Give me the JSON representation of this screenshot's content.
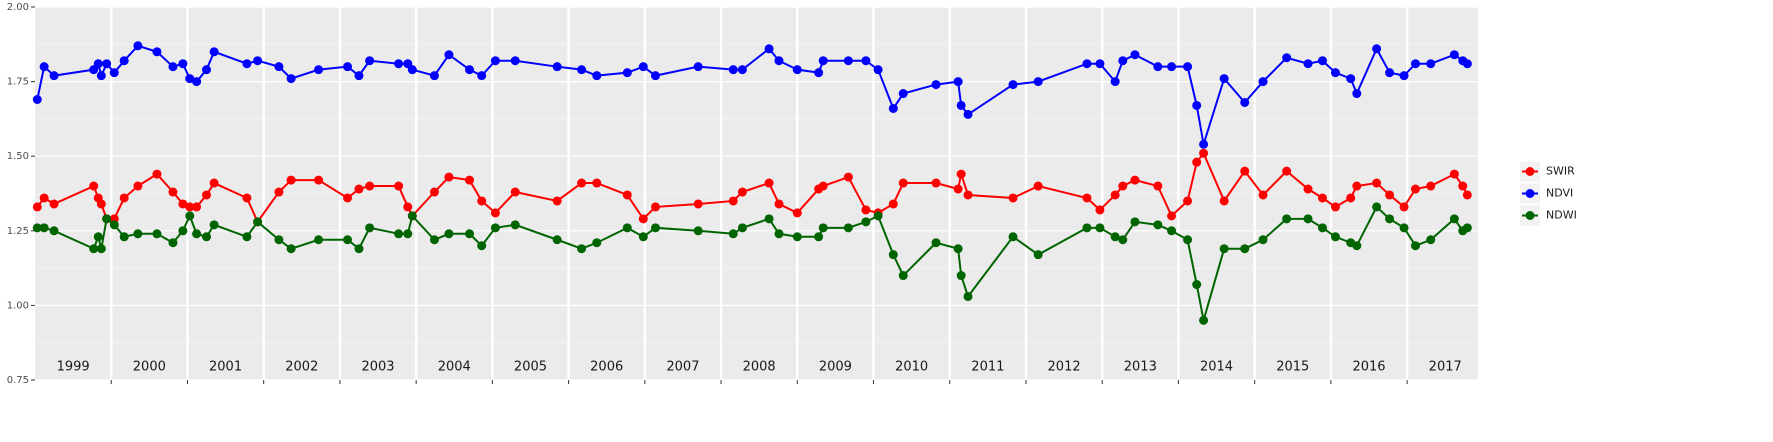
{
  "chart_data": {
    "type": "line",
    "x": [
      1999.03,
      1999.12,
      1999.25,
      1999.77,
      1999.83,
      1999.87,
      1999.94,
      2000.04,
      2000.17,
      2000.35,
      2000.6,
      2000.81,
      2000.94,
      2001.03,
      2001.12,
      2001.25,
      2001.35,
      2001.78,
      2001.92,
      2002.2,
      2002.36,
      2002.72,
      2003.1,
      2003.25,
      2003.39,
      2003.77,
      2003.89,
      2003.95,
      2004.24,
      2004.43,
      2004.7,
      2004.86,
      2005.04,
      2005.3,
      2005.85,
      2006.17,
      2006.37,
      2006.77,
      2006.98,
      2007.14,
      2007.7,
      2008.16,
      2008.28,
      2008.63,
      2008.76,
      2009.0,
      2009.28,
      2009.34,
      2009.67,
      2009.9,
      2010.06,
      2010.26,
      2010.39,
      2010.82,
      2011.11,
      2011.15,
      2011.24,
      2011.83,
      2012.16,
      2012.8,
      2012.97,
      2013.17,
      2013.27,
      2013.43,
      2013.73,
      2013.91,
      2014.12,
      2014.24,
      2014.33,
      2014.6,
      2014.87,
      2015.11,
      2015.42,
      2015.7,
      2015.89,
      2016.06,
      2016.26,
      2016.34,
      2016.6,
      2016.77,
      2016.96,
      2017.11,
      2017.31,
      2017.62,
      2017.73,
      2017.79
    ],
    "series": [
      {
        "name": "SWIR",
        "color": "#ff0000",
        "values": [
          1.33,
          1.36,
          1.34,
          1.4,
          1.36,
          1.34,
          1.29,
          1.29,
          1.36,
          1.4,
          1.44,
          1.38,
          1.34,
          1.33,
          1.33,
          1.37,
          1.41,
          1.36,
          1.28,
          1.38,
          1.42,
          1.42,
          1.36,
          1.39,
          1.4,
          1.4,
          1.33,
          1.3,
          1.38,
          1.43,
          1.42,
          1.35,
          1.31,
          1.38,
          1.35,
          1.41,
          1.41,
          1.37,
          1.29,
          1.33,
          1.34,
          1.35,
          1.38,
          1.41,
          1.34,
          1.31,
          1.39,
          1.4,
          1.43,
          1.32,
          1.31,
          1.34,
          1.41,
          1.41,
          1.39,
          1.44,
          1.37,
          1.36,
          1.4,
          1.36,
          1.32,
          1.37,
          1.4,
          1.42,
          1.4,
          1.3,
          1.35,
          1.48,
          1.51,
          1.35,
          1.45,
          1.37,
          1.45,
          1.39,
          1.36,
          1.33,
          1.36,
          1.4,
          1.41,
          1.37,
          1.33,
          1.39,
          1.4,
          1.44,
          1.4,
          1.37
        ]
      },
      {
        "name": "NDVI",
        "color": "#0000ff",
        "values": [
          1.69,
          1.8,
          1.77,
          1.79,
          1.81,
          1.77,
          1.81,
          1.78,
          1.82,
          1.87,
          1.85,
          1.8,
          1.81,
          1.76,
          1.75,
          1.79,
          1.85,
          1.81,
          1.82,
          1.8,
          1.76,
          1.79,
          1.8,
          1.77,
          1.82,
          1.81,
          1.81,
          1.79,
          1.77,
          1.84,
          1.79,
          1.77,
          1.82,
          1.82,
          1.8,
          1.79,
          1.77,
          1.78,
          1.8,
          1.77,
          1.8,
          1.79,
          1.79,
          1.86,
          1.82,
          1.79,
          1.78,
          1.82,
          1.82,
          1.82,
          1.79,
          1.66,
          1.71,
          1.74,
          1.75,
          1.67,
          1.64,
          1.74,
          1.75,
          1.81,
          1.81,
          1.75,
          1.82,
          1.84,
          1.8,
          1.8,
          1.8,
          1.67,
          1.54,
          1.76,
          1.68,
          1.75,
          1.83,
          1.81,
          1.82,
          1.78,
          1.76,
          1.71,
          1.86,
          1.78,
          1.77,
          1.81,
          1.81,
          1.84,
          1.82,
          1.81
        ]
      },
      {
        "name": "NDWI",
        "color": "#006400",
        "values": [
          1.26,
          1.26,
          1.25,
          1.19,
          1.23,
          1.19,
          1.29,
          1.27,
          1.23,
          1.24,
          1.24,
          1.21,
          1.25,
          1.3,
          1.24,
          1.23,
          1.27,
          1.23,
          1.28,
          1.22,
          1.19,
          1.22,
          1.22,
          1.19,
          1.26,
          1.24,
          1.24,
          1.3,
          1.22,
          1.24,
          1.24,
          1.2,
          1.26,
          1.27,
          1.22,
          1.19,
          1.21,
          1.26,
          1.23,
          1.26,
          1.25,
          1.24,
          1.26,
          1.29,
          1.24,
          1.23,
          1.23,
          1.26,
          1.26,
          1.28,
          1.3,
          1.17,
          1.1,
          1.21,
          1.19,
          1.1,
          1.03,
          1.23,
          1.17,
          1.26,
          1.26,
          1.23,
          1.22,
          1.28,
          1.27,
          1.25,
          1.22,
          1.07,
          0.95,
          1.19,
          1.19,
          1.22,
          1.29,
          1.29,
          1.26,
          1.23,
          1.21,
          1.2,
          1.33,
          1.29,
          1.26,
          1.2,
          1.22,
          1.29,
          1.25,
          1.26
        ]
      }
    ],
    "year_labels": [
      "1999",
      "2000",
      "2001",
      "2002",
      "2003",
      "2004",
      "2005",
      "2006",
      "2007",
      "2008",
      "2009",
      "2010",
      "2011",
      "2012",
      "2013",
      "2014",
      "2015",
      "2016",
      "2017"
    ],
    "xlim": [
      1999,
      2017.93
    ],
    "xticks": [
      2000,
      2001,
      2002,
      2003,
      2004,
      2005,
      2006,
      2007,
      2008,
      2009,
      2010,
      2011,
      2012,
      2013,
      2014,
      2015,
      2016,
      2017
    ],
    "ylim": [
      0.75,
      2.0
    ],
    "yticks": [
      {
        "value": 0.75,
        "label": "0.75"
      },
      {
        "value": 1.0,
        "label": "1.00"
      },
      {
        "value": 1.25,
        "label": "1.25"
      },
      {
        "value": 1.5,
        "label": "1.50"
      },
      {
        "value": 1.75,
        "label": "1.75"
      },
      {
        "value": 2.0,
        "label": "2.00"
      }
    ],
    "grid": true,
    "legend": "right"
  }
}
